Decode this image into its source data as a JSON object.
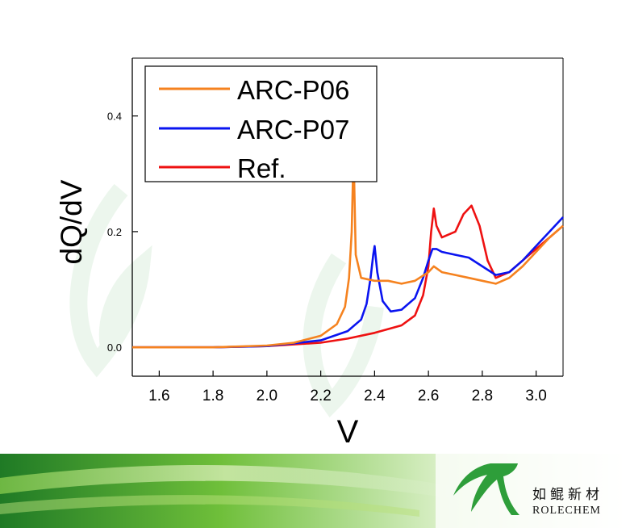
{
  "colors": {
    "series_orange": "#f5821f",
    "series_blue": "#0a14f0",
    "series_red": "#ee1111",
    "brand_green": "#2e9e3a"
  },
  "brand": {
    "chinese": "如鲲新材",
    "english": "ROLECHEM",
    "logo_icon": "rolechem-logo-icon"
  },
  "chart_data": {
    "type": "line",
    "title": "",
    "xlabel": "V",
    "ylabel": "dQ/dV",
    "xlim": [
      1.5,
      3.1
    ],
    "ylim": [
      -0.05,
      0.5
    ],
    "xticks": [
      "1.6",
      "1.8",
      "2.0",
      "2.2",
      "2.4",
      "2.6",
      "2.8",
      "3.0"
    ],
    "yticks": [
      "0.0",
      "0.2",
      "0.4"
    ],
    "legend_position": "top-left",
    "grid": false,
    "series": [
      {
        "name": "ARC-P06",
        "color": "#f5821f",
        "x": [
          1.5,
          1.8,
          2.0,
          2.1,
          2.2,
          2.26,
          2.29,
          2.305,
          2.315,
          2.322,
          2.33,
          2.35,
          2.4,
          2.45,
          2.5,
          2.55,
          2.6,
          2.62,
          2.65,
          2.7,
          2.75,
          2.8,
          2.85,
          2.9,
          2.95,
          3.0,
          3.05,
          3.1
        ],
        "y": [
          0.0,
          0.0,
          0.003,
          0.008,
          0.02,
          0.04,
          0.07,
          0.12,
          0.2,
          0.34,
          0.16,
          0.12,
          0.115,
          0.115,
          0.11,
          0.115,
          0.13,
          0.14,
          0.13,
          0.125,
          0.12,
          0.115,
          0.11,
          0.12,
          0.14,
          0.165,
          0.19,
          0.21
        ]
      },
      {
        "name": "ARC-P07",
        "color": "#0a14f0",
        "x": [
          1.5,
          1.8,
          2.0,
          2.2,
          2.3,
          2.35,
          2.37,
          2.385,
          2.395,
          2.4,
          2.41,
          2.43,
          2.46,
          2.5,
          2.55,
          2.58,
          2.6,
          2.615,
          2.63,
          2.65,
          2.7,
          2.75,
          2.8,
          2.85,
          2.9,
          2.95,
          3.0,
          3.05,
          3.1
        ],
        "y": [
          0.0,
          0.0,
          0.002,
          0.012,
          0.028,
          0.048,
          0.075,
          0.12,
          0.16,
          0.175,
          0.13,
          0.08,
          0.062,
          0.065,
          0.085,
          0.12,
          0.15,
          0.17,
          0.17,
          0.165,
          0.16,
          0.155,
          0.14,
          0.125,
          0.13,
          0.15,
          0.175,
          0.2,
          0.225
        ]
      },
      {
        "name": "Ref.",
        "color": "#ee1111",
        "x": [
          1.5,
          1.8,
          2.0,
          2.2,
          2.3,
          2.4,
          2.5,
          2.55,
          2.58,
          2.6,
          2.61,
          2.62,
          2.63,
          2.65,
          2.7,
          2.73,
          2.76,
          2.79,
          2.82,
          2.85,
          2.9,
          2.95,
          3.0,
          3.05,
          3.1
        ],
        "y": [
          0.0,
          0.0,
          0.002,
          0.008,
          0.015,
          0.025,
          0.038,
          0.055,
          0.09,
          0.14,
          0.2,
          0.24,
          0.21,
          0.19,
          0.2,
          0.23,
          0.245,
          0.21,
          0.15,
          0.12,
          0.13,
          0.15,
          0.17,
          0.19,
          0.21
        ]
      }
    ]
  }
}
